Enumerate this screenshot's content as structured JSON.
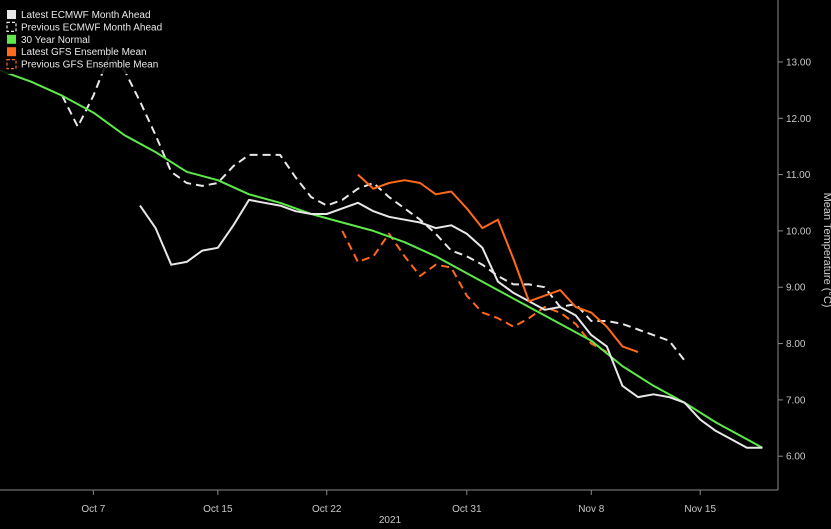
{
  "chart_data": {
    "type": "line",
    "title": "",
    "xlabel": "",
    "ylabel": "Mean Temperature (°C)",
    "x_ticks": [
      {
        "date": "2021-10-07",
        "label": "Oct 7"
      },
      {
        "date": "2021-10-15",
        "label": "Oct 15"
      },
      {
        "date": "2021-10-22",
        "label": "Oct 22"
      },
      {
        "date": "2021-10-31",
        "label": "Oct 31"
      },
      {
        "date": "2021-11-08",
        "label": "Nov 8"
      },
      {
        "date": "2021-11-15",
        "label": "Nov 15"
      }
    ],
    "year_label": "2021",
    "xlim": [
      "2021-10-01",
      "2021-11-20"
    ],
    "y_ticks": [
      "6.00",
      "7.00",
      "8.00",
      "9.00",
      "10.00",
      "11.00",
      "12.00",
      "13.00"
    ],
    "ylim": [
      5.4,
      14.1
    ],
    "y_axis_side": "right",
    "grid": false,
    "legend_position": "top-left",
    "series": [
      {
        "name": "Latest ECMWF Month Ahead",
        "color": "#e8e8e8",
        "dash": "solid",
        "legend_marker": "filled",
        "points": [
          [
            "2021-10-10",
            10.45
          ],
          [
            "2021-10-11",
            10.05
          ],
          [
            "2021-10-12",
            9.4
          ],
          [
            "2021-10-13",
            9.45
          ],
          [
            "2021-10-14",
            9.65
          ],
          [
            "2021-10-15",
            9.7
          ],
          [
            "2021-10-16",
            10.1
          ],
          [
            "2021-10-17",
            10.55
          ],
          [
            "2021-10-18",
            10.5
          ],
          [
            "2021-10-19",
            10.45
          ],
          [
            "2021-10-20",
            10.35
          ],
          [
            "2021-10-21",
            10.3
          ],
          [
            "2021-10-22",
            10.3
          ],
          [
            "2021-10-23",
            10.4
          ],
          [
            "2021-10-24",
            10.5
          ],
          [
            "2021-10-25",
            10.35
          ],
          [
            "2021-10-26",
            10.25
          ],
          [
            "2021-10-27",
            10.2
          ],
          [
            "2021-10-28",
            10.15
          ],
          [
            "2021-10-29",
            10.05
          ],
          [
            "2021-10-30",
            10.1
          ],
          [
            "2021-10-31",
            9.95
          ],
          [
            "2021-11-01",
            9.7
          ],
          [
            "2021-11-02",
            9.1
          ],
          [
            "2021-11-03",
            8.9
          ],
          [
            "2021-11-04",
            8.75
          ],
          [
            "2021-11-05",
            8.6
          ],
          [
            "2021-11-06",
            8.65
          ],
          [
            "2021-11-07",
            8.5
          ],
          [
            "2021-11-08",
            8.15
          ],
          [
            "2021-11-09",
            7.95
          ],
          [
            "2021-11-10",
            7.25
          ],
          [
            "2021-11-11",
            7.05
          ],
          [
            "2021-11-12",
            7.1
          ],
          [
            "2021-11-13",
            7.05
          ],
          [
            "2021-11-14",
            6.95
          ],
          [
            "2021-11-15",
            6.65
          ],
          [
            "2021-11-16",
            6.45
          ],
          [
            "2021-11-17",
            6.3
          ],
          [
            "2021-11-18",
            6.15
          ],
          [
            "2021-11-19",
            6.15
          ]
        ]
      },
      {
        "name": "Previous ECMWF Month Ahead",
        "color": "#e8e8e8",
        "dash": "dashed",
        "legend_marker": "outline",
        "points": [
          [
            "2021-10-05",
            12.4
          ],
          [
            "2021-10-06",
            11.85
          ],
          [
            "2021-10-07",
            12.4
          ],
          [
            "2021-10-08",
            13.1
          ],
          [
            "2021-10-09",
            12.85
          ],
          [
            "2021-10-10",
            12.3
          ],
          [
            "2021-10-11",
            11.7
          ],
          [
            "2021-10-12",
            11.05
          ],
          [
            "2021-10-13",
            10.85
          ],
          [
            "2021-10-14",
            10.8
          ],
          [
            "2021-10-15",
            10.85
          ],
          [
            "2021-10-16",
            11.15
          ],
          [
            "2021-10-17",
            11.35
          ],
          [
            "2021-10-18",
            11.35
          ],
          [
            "2021-10-19",
            11.35
          ],
          [
            "2021-10-20",
            10.95
          ],
          [
            "2021-10-21",
            10.6
          ],
          [
            "2021-10-22",
            10.45
          ],
          [
            "2021-10-23",
            10.55
          ],
          [
            "2021-10-24",
            10.75
          ],
          [
            "2021-10-25",
            10.85
          ],
          [
            "2021-10-26",
            10.6
          ],
          [
            "2021-10-27",
            10.4
          ],
          [
            "2021-10-28",
            10.2
          ],
          [
            "2021-10-29",
            9.95
          ],
          [
            "2021-10-30",
            9.65
          ],
          [
            "2021-10-31",
            9.55
          ],
          [
            "2021-11-01",
            9.4
          ],
          [
            "2021-11-02",
            9.2
          ],
          [
            "2021-11-03",
            9.05
          ],
          [
            "2021-11-04",
            9.05
          ],
          [
            "2021-11-05",
            9.0
          ],
          [
            "2021-11-06",
            8.65
          ],
          [
            "2021-11-07",
            8.7
          ],
          [
            "2021-11-08",
            8.4
          ],
          [
            "2021-11-09",
            8.4
          ],
          [
            "2021-11-10",
            8.35
          ],
          [
            "2021-11-11",
            8.25
          ],
          [
            "2021-11-12",
            8.15
          ],
          [
            "2021-11-13",
            8.05
          ],
          [
            "2021-11-14",
            7.7
          ]
        ]
      },
      {
        "name": "30 Year Normal",
        "color": "#5ee84a",
        "dash": "solid",
        "legend_marker": "filled",
        "points": [
          [
            "2021-10-01",
            12.85
          ],
          [
            "2021-10-03",
            12.65
          ],
          [
            "2021-10-05",
            12.4
          ],
          [
            "2021-10-07",
            12.1
          ],
          [
            "2021-10-09",
            11.7
          ],
          [
            "2021-10-11",
            11.4
          ],
          [
            "2021-10-13",
            11.05
          ],
          [
            "2021-10-15",
            10.9
          ],
          [
            "2021-10-17",
            10.65
          ],
          [
            "2021-10-19",
            10.5
          ],
          [
            "2021-10-21",
            10.3
          ],
          [
            "2021-10-23",
            10.15
          ],
          [
            "2021-10-25",
            10.0
          ],
          [
            "2021-10-27",
            9.8
          ],
          [
            "2021-10-29",
            9.55
          ],
          [
            "2021-10-31",
            9.25
          ],
          [
            "2021-11-02",
            8.95
          ],
          [
            "2021-11-04",
            8.65
          ],
          [
            "2021-11-06",
            8.35
          ],
          [
            "2021-11-08",
            8.05
          ],
          [
            "2021-11-10",
            7.6
          ],
          [
            "2021-11-12",
            7.25
          ],
          [
            "2021-11-14",
            6.95
          ],
          [
            "2021-11-16",
            6.6
          ],
          [
            "2021-11-18",
            6.3
          ],
          [
            "2021-11-19",
            6.15
          ]
        ]
      },
      {
        "name": "Latest GFS Ensemble Mean",
        "color": "#ff6a1a",
        "dash": "solid",
        "legend_marker": "filled",
        "points": [
          [
            "2021-10-24",
            11.0
          ],
          [
            "2021-10-25",
            10.75
          ],
          [
            "2021-10-26",
            10.85
          ],
          [
            "2021-10-27",
            10.9
          ],
          [
            "2021-10-28",
            10.85
          ],
          [
            "2021-10-29",
            10.65
          ],
          [
            "2021-10-30",
            10.7
          ],
          [
            "2021-10-31",
            10.4
          ],
          [
            "2021-11-01",
            10.05
          ],
          [
            "2021-11-02",
            10.2
          ],
          [
            "2021-11-03",
            9.5
          ],
          [
            "2021-11-04",
            8.75
          ],
          [
            "2021-11-05",
            8.85
          ],
          [
            "2021-11-06",
            8.95
          ],
          [
            "2021-11-07",
            8.65
          ],
          [
            "2021-11-08",
            8.55
          ],
          [
            "2021-11-09",
            8.3
          ],
          [
            "2021-11-10",
            7.95
          ],
          [
            "2021-11-11",
            7.85
          ]
        ]
      },
      {
        "name": "Previous GFS Ensemble Mean",
        "color": "#ff6a1a",
        "dash": "dashed",
        "legend_marker": "outline",
        "points": [
          [
            "2021-10-23",
            10.0
          ],
          [
            "2021-10-24",
            9.45
          ],
          [
            "2021-10-25",
            9.55
          ],
          [
            "2021-10-26",
            9.95
          ],
          [
            "2021-10-27",
            9.55
          ],
          [
            "2021-10-28",
            9.2
          ],
          [
            "2021-10-29",
            9.4
          ],
          [
            "2021-10-30",
            9.35
          ],
          [
            "2021-10-31",
            8.85
          ],
          [
            "2021-11-01",
            8.55
          ],
          [
            "2021-11-02",
            8.45
          ],
          [
            "2021-11-03",
            8.3
          ],
          [
            "2021-11-04",
            8.45
          ],
          [
            "2021-11-05",
            8.65
          ],
          [
            "2021-11-06",
            8.55
          ],
          [
            "2021-11-07",
            8.35
          ],
          [
            "2021-11-08",
            8.0
          ],
          [
            "2021-11-09",
            7.85
          ]
        ]
      }
    ]
  }
}
